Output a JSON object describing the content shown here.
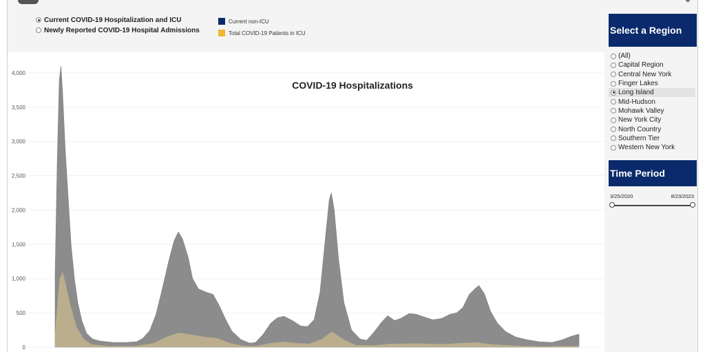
{
  "toggles": [
    {
      "label": "Current COVID-19 Hospitalization and ICU",
      "checked": true
    },
    {
      "label": "Newly Reported COVID-19 Hospital Admissions",
      "checked": false
    }
  ],
  "legend": [
    {
      "label": "Current non-ICU",
      "color": "#0a2a6b"
    },
    {
      "label": "Total COVID-19 Patients in ICU",
      "color": "#f0b833"
    }
  ],
  "sidebar": {
    "region_title": "Select a Region",
    "regions": [
      {
        "label": "(All)",
        "selected": false
      },
      {
        "label": "Capital Region",
        "selected": false
      },
      {
        "label": "Central New York",
        "selected": false
      },
      {
        "label": "Finger Lakes",
        "selected": false
      },
      {
        "label": "Long Island",
        "selected": true
      },
      {
        "label": "Mid-Hudson",
        "selected": false
      },
      {
        "label": "Mohawk Valley",
        "selected": false
      },
      {
        "label": "New York City",
        "selected": false
      },
      {
        "label": "North Country",
        "selected": false
      },
      {
        "label": "Southern Tier",
        "selected": false
      },
      {
        "label": "Western New York",
        "selected": false
      }
    ],
    "time_title": "Time Period",
    "date_start": "3/25/2020",
    "date_end": "8/23/2023"
  },
  "chart_data": {
    "type": "area",
    "title": "COVID-19 Hospitalizations",
    "ylim": [
      0,
      4300
    ],
    "yticks": [
      0,
      500,
      1000,
      1500,
      2000,
      2500,
      3000,
      3500,
      4000
    ],
    "ytick_labels": [
      "0",
      "500",
      "1,000",
      "1,500",
      "2,000",
      "2,500",
      "3,000",
      "3,500",
      "4,000"
    ],
    "x_range": [
      "2020-03-25",
      "2023-08-23"
    ],
    "grid": true,
    "series": [
      {
        "name": "Current non-ICU",
        "color": "#8c8c8c",
        "points": [
          [
            "2020-03-25",
            1050
          ],
          [
            "2020-03-30",
            2700
          ],
          [
            "2020-04-04",
            3900
          ],
          [
            "2020-04-08",
            4100
          ],
          [
            "2020-04-12",
            3700
          ],
          [
            "2020-04-18",
            2900
          ],
          [
            "2020-04-25",
            2200
          ],
          [
            "2020-05-02",
            1500
          ],
          [
            "2020-05-10",
            1000
          ],
          [
            "2020-05-18",
            650
          ],
          [
            "2020-05-28",
            380
          ],
          [
            "2020-06-08",
            200
          ],
          [
            "2020-06-22",
            120
          ],
          [
            "2020-07-10",
            90
          ],
          [
            "2020-08-10",
            70
          ],
          [
            "2020-09-10",
            70
          ],
          [
            "2020-10-05",
            80
          ],
          [
            "2020-10-20",
            130
          ],
          [
            "2020-11-05",
            240
          ],
          [
            "2020-11-20",
            480
          ],
          [
            "2020-12-05",
            850
          ],
          [
            "2020-12-20",
            1250
          ],
          [
            "2021-01-02",
            1550
          ],
          [
            "2021-01-12",
            1680
          ],
          [
            "2021-01-22",
            1580
          ],
          [
            "2021-02-05",
            1300
          ],
          [
            "2021-02-15",
            1000
          ],
          [
            "2021-03-01",
            850
          ],
          [
            "2021-03-20",
            800
          ],
          [
            "2021-04-05",
            770
          ],
          [
            "2021-04-20",
            600
          ],
          [
            "2021-05-05",
            400
          ],
          [
            "2021-05-20",
            230
          ],
          [
            "2021-06-10",
            110
          ],
          [
            "2021-07-01",
            60
          ],
          [
            "2021-07-15",
            70
          ],
          [
            "2021-08-01",
            180
          ],
          [
            "2021-08-20",
            350
          ],
          [
            "2021-09-05",
            430
          ],
          [
            "2021-09-20",
            450
          ],
          [
            "2021-10-10",
            390
          ],
          [
            "2021-10-30",
            310
          ],
          [
            "2021-11-15",
            300
          ],
          [
            "2021-12-01",
            400
          ],
          [
            "2021-12-15",
            800
          ],
          [
            "2021-12-28",
            1600
          ],
          [
            "2022-01-06",
            2150
          ],
          [
            "2022-01-11",
            2250
          ],
          [
            "2022-01-18",
            2000
          ],
          [
            "2022-01-28",
            1300
          ],
          [
            "2022-02-10",
            650
          ],
          [
            "2022-02-28",
            250
          ],
          [
            "2022-03-20",
            120
          ],
          [
            "2022-04-05",
            100
          ],
          [
            "2022-04-20",
            200
          ],
          [
            "2022-05-10",
            360
          ],
          [
            "2022-05-25",
            460
          ],
          [
            "2022-06-10",
            390
          ],
          [
            "2022-06-25",
            420
          ],
          [
            "2022-07-15",
            490
          ],
          [
            "2022-08-01",
            480
          ],
          [
            "2022-08-20",
            440
          ],
          [
            "2022-09-10",
            400
          ],
          [
            "2022-10-01",
            420
          ],
          [
            "2022-10-20",
            480
          ],
          [
            "2022-11-05",
            500
          ],
          [
            "2022-11-20",
            580
          ],
          [
            "2022-12-05",
            770
          ],
          [
            "2022-12-20",
            860
          ],
          [
            "2022-12-28",
            900
          ],
          [
            "2023-01-10",
            780
          ],
          [
            "2023-01-25",
            520
          ],
          [
            "2023-02-10",
            350
          ],
          [
            "2023-03-01",
            230
          ],
          [
            "2023-03-25",
            150
          ],
          [
            "2023-04-20",
            110
          ],
          [
            "2023-05-20",
            80
          ],
          [
            "2023-06-20",
            70
          ],
          [
            "2023-07-15",
            110
          ],
          [
            "2023-08-05",
            160
          ],
          [
            "2023-08-23",
            190
          ]
        ]
      },
      {
        "name": "Total COVID-19 Patients in ICU",
        "color": "#c9b98c",
        "points": [
          [
            "2020-03-25",
            200
          ],
          [
            "2020-03-30",
            600
          ],
          [
            "2020-04-05",
            1000
          ],
          [
            "2020-04-12",
            1100
          ],
          [
            "2020-04-20",
            900
          ],
          [
            "2020-05-01",
            600
          ],
          [
            "2020-05-15",
            300
          ],
          [
            "2020-06-01",
            120
          ],
          [
            "2020-06-20",
            40
          ],
          [
            "2020-08-01",
            15
          ],
          [
            "2020-10-01",
            15
          ],
          [
            "2020-11-15",
            60
          ],
          [
            "2020-12-15",
            150
          ],
          [
            "2021-01-12",
            210
          ],
          [
            "2021-02-15",
            180
          ],
          [
            "2021-03-15",
            150
          ],
          [
            "2021-04-15",
            130
          ],
          [
            "2021-05-15",
            60
          ],
          [
            "2021-06-15",
            20
          ],
          [
            "2021-07-15",
            15
          ],
          [
            "2021-08-20",
            60
          ],
          [
            "2021-09-20",
            80
          ],
          [
            "2021-10-20",
            60
          ],
          [
            "2021-11-20",
            50
          ],
          [
            "2021-12-20",
            120
          ],
          [
            "2022-01-12",
            230
          ],
          [
            "2022-02-10",
            110
          ],
          [
            "2022-03-10",
            30
          ],
          [
            "2022-04-20",
            25
          ],
          [
            "2022-06-01",
            50
          ],
          [
            "2022-08-01",
            55
          ],
          [
            "2022-10-01",
            45
          ],
          [
            "2022-12-20",
            70
          ],
          [
            "2023-02-01",
            40
          ],
          [
            "2023-04-01",
            20
          ],
          [
            "2023-06-01",
            12
          ],
          [
            "2023-08-23",
            20
          ]
        ]
      }
    ]
  }
}
